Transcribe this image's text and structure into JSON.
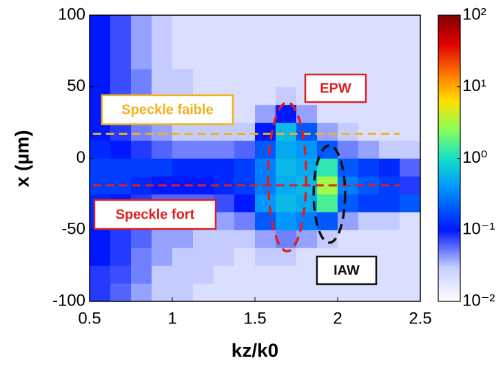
{
  "chart_data": {
    "type": "heatmap",
    "xlabel": "kz/k0",
    "ylabel": "x (µm)",
    "x_edges": [
      0.5,
      0.625,
      0.75,
      0.875,
      1,
      1.125,
      1.25,
      1.375,
      1.5,
      1.625,
      1.75,
      1.875,
      2,
      2.125,
      2.25,
      2.375,
      2.5
    ],
    "y_edges": [
      -100,
      -87.5,
      -75,
      -62.5,
      -50,
      -37.5,
      -25,
      -12.5,
      0,
      12.5,
      25,
      37.5,
      50,
      62.5,
      75,
      87.5,
      100
    ],
    "z": [
      [
        0.08,
        0.06,
        0.04,
        0.03,
        0.03,
        0.02,
        0.02,
        0.02,
        0.02,
        0.02,
        0.02,
        0.02,
        0.02,
        0.02,
        0.02,
        0.02
      ],
      [
        0.08,
        0.07,
        0.05,
        0.03,
        0.03,
        0.03,
        0.02,
        0.02,
        0.02,
        0.02,
        0.02,
        0.02,
        0.02,
        0.02,
        0.02,
        0.02
      ],
      [
        0.1,
        0.08,
        0.05,
        0.04,
        0.03,
        0.03,
        0.03,
        0.02,
        0.03,
        0.03,
        0.02,
        0.02,
        0.02,
        0.02,
        0.02,
        0.02
      ],
      [
        0.1,
        0.08,
        0.06,
        0.04,
        0.04,
        0.03,
        0.03,
        0.03,
        0.04,
        0.05,
        0.04,
        0.03,
        0.02,
        0.02,
        0.02,
        0.02
      ],
      [
        0.12,
        0.1,
        0.07,
        0.05,
        0.05,
        0.04,
        0.04,
        0.05,
        0.2,
        0.4,
        0.3,
        0.2,
        0.04,
        0.03,
        0.03,
        0.02
      ],
      [
        0.12,
        0.1,
        0.08,
        0.06,
        0.06,
        0.06,
        0.07,
        0.1,
        0.4,
        0.6,
        0.5,
        1.5,
        0.2,
        0.15,
        0.15,
        0.2
      ],
      [
        0.15,
        0.15,
        0.12,
        0.1,
        0.1,
        0.1,
        0.12,
        0.15,
        0.3,
        0.5,
        0.6,
        3,
        0.3,
        0.2,
        0.15,
        0.08
      ],
      [
        0.15,
        0.15,
        0.15,
        0.15,
        0.12,
        0.12,
        0.12,
        0.15,
        0.3,
        0.6,
        0.5,
        1.2,
        0.2,
        0.15,
        0.12,
        0.06
      ],
      [
        0.12,
        0.1,
        0.08,
        0.06,
        0.05,
        0.05,
        0.05,
        0.06,
        0.2,
        0.5,
        0.4,
        0.2,
        0.05,
        0.04,
        0.03,
        0.03
      ],
      [
        0.1,
        0.08,
        0.05,
        0.04,
        0.03,
        0.03,
        0.03,
        0.03,
        0.1,
        0.6,
        0.2,
        0.04,
        0.03,
        0.02,
        0.02,
        0.02
      ],
      [
        0.1,
        0.07,
        0.05,
        0.03,
        0.03,
        0.03,
        0.02,
        0.02,
        0.04,
        0.1,
        0.04,
        0.02,
        0.02,
        0.02,
        0.02,
        0.02
      ],
      [
        0.1,
        0.07,
        0.05,
        0.03,
        0.03,
        0.02,
        0.02,
        0.02,
        0.02,
        0.03,
        0.02,
        0.02,
        0.02,
        0.02,
        0.02,
        0.02
      ],
      [
        0.1,
        0.07,
        0.05,
        0.03,
        0.03,
        0.02,
        0.02,
        0.02,
        0.02,
        0.02,
        0.02,
        0.02,
        0.02,
        0.02,
        0.02,
        0.02
      ],
      [
        0.1,
        0.07,
        0.04,
        0.03,
        0.02,
        0.02,
        0.02,
        0.02,
        0.02,
        0.02,
        0.02,
        0.02,
        0.02,
        0.02,
        0.02,
        0.02
      ],
      [
        0.1,
        0.07,
        0.04,
        0.03,
        0.02,
        0.02,
        0.02,
        0.02,
        0.02,
        0.02,
        0.02,
        0.02,
        0.02,
        0.02,
        0.02,
        0.02
      ],
      [
        0.1,
        0.07,
        0.04,
        0.03,
        0.02,
        0.02,
        0.02,
        0.02,
        0.02,
        0.02,
        0.02,
        0.02,
        0.02,
        0.02,
        0.02,
        0.02
      ]
    ],
    "xlim": [
      0.5,
      2.5
    ],
    "ylim": [
      -100,
      100
    ],
    "xticks": [
      0.5,
      1,
      1.5,
      2,
      2.5
    ],
    "yticks": [
      -100,
      -50,
      0,
      50,
      100
    ],
    "colorbar": {
      "scale": "log",
      "lim": [
        0.01,
        100
      ],
      "ticks": [
        {
          "value": 0.01,
          "label": "10⁻²"
        },
        {
          "value": 0.1,
          "label": "10⁻¹"
        },
        {
          "value": 1,
          "label": "10⁰"
        },
        {
          "value": 10,
          "label": "10¹"
        },
        {
          "value": 100,
          "label": "10²"
        }
      ]
    },
    "hlines": [
      {
        "y": 17,
        "x": [
          0.52,
          2.375
        ],
        "color": "#f2b21c"
      },
      {
        "y": -19,
        "x": [
          0.52,
          2.375
        ],
        "color": "#e02020"
      }
    ],
    "ellipses": [
      {
        "cx": 1.695,
        "cy": -13,
        "rx": 0.115,
        "ry": 52,
        "color": "#e02020"
      },
      {
        "cx": 1.95,
        "cy": -25,
        "rx": 0.095,
        "ry": 34,
        "color": "#111111"
      }
    ],
    "annotations": [
      {
        "text": "Speckle faible",
        "color": "#f2b21c"
      },
      {
        "text": "Speckle fort",
        "color": "#e02020"
      },
      {
        "text": "EPW",
        "color": "#e02020"
      },
      {
        "text": "IAW",
        "color": "#111111"
      }
    ]
  }
}
